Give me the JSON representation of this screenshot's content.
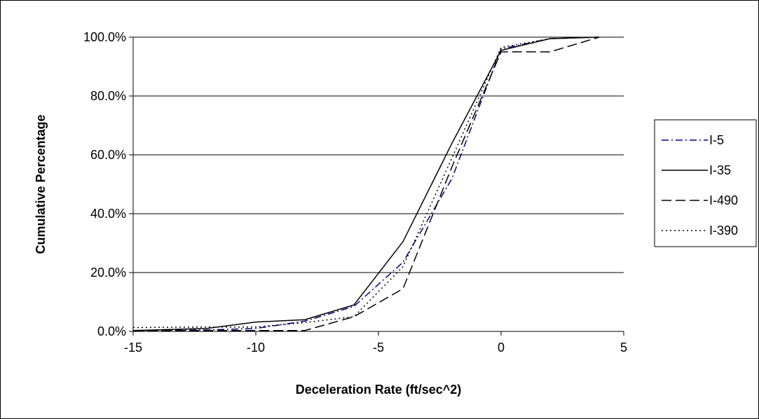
{
  "chart_data": {
    "type": "line",
    "xlabel": "Deceleration Rate (ft/sec^2)",
    "ylabel": "Cumulative Percentage",
    "xlim": [
      -15,
      5
    ],
    "ylim": [
      0,
      100
    ],
    "x_ticks": [
      -15,
      -10,
      -5,
      0,
      5
    ],
    "x_tick_labels": [
      "-15",
      "-10",
      "-5",
      "0",
      "5"
    ],
    "y_ticks": [
      0,
      20,
      40,
      60,
      80,
      100
    ],
    "y_tick_labels": [
      "0.0%",
      "20.0%",
      "40.0%",
      "60.0%",
      "80.0%",
      "100.0%"
    ],
    "grid": "horizontal",
    "legend_position": "right",
    "series": [
      {
        "name": "I-5",
        "style": "dash-dot",
        "color": "#000080",
        "x": [
          -15,
          -12,
          -10,
          -8,
          -6,
          -4,
          -2,
          0,
          2,
          4
        ],
        "y": [
          0.3,
          0.5,
          1.0,
          3.5,
          8.5,
          23.5,
          52.0,
          96.0,
          99.5,
          100.0
        ]
      },
      {
        "name": "I-35",
        "style": "solid",
        "color": "#000000",
        "x": [
          -15,
          -12,
          -10,
          -8,
          -6,
          -4,
          -2,
          0,
          2,
          4
        ],
        "y": [
          0.3,
          1.0,
          3.2,
          4.0,
          9.0,
          30.5,
          64.0,
          95.5,
          99.5,
          100.0
        ]
      },
      {
        "name": "I-490",
        "style": "dash",
        "color": "#000000",
        "x": [
          -15,
          -12,
          -10,
          -8,
          -6,
          -4,
          -2,
          0,
          2,
          4
        ],
        "y": [
          0.3,
          0.3,
          0.3,
          0.3,
          5.0,
          14.5,
          56.0,
          95.0,
          95.0,
          100.0
        ]
      },
      {
        "name": "I-390",
        "style": "dot",
        "color": "#000000",
        "x": [
          -15,
          -12,
          -10,
          -8,
          -6,
          -4,
          -2,
          0,
          2,
          4
        ],
        "y": [
          1.3,
          1.5,
          1.5,
          3.0,
          5.0,
          22.0,
          59.0,
          96.5,
          99.5,
          100.0
        ]
      }
    ]
  }
}
